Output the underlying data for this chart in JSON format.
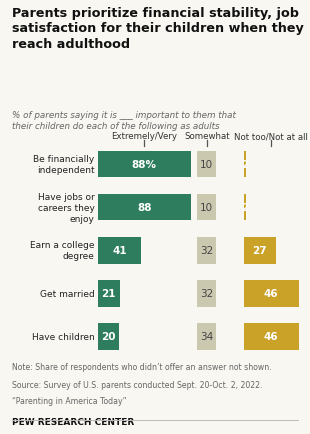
{
  "title": "Parents prioritize financial stability, job\nsatisfaction for their children when they\nreach adulthood",
  "subtitle": "% of parents saying it is ___ important to them that\ntheir children do each of the following as adults",
  "categories": [
    "Be financially\nindependent",
    "Have jobs or\ncareers they\nenjoy",
    "Earn a college\ndegree",
    "Get married",
    "Have children"
  ],
  "extremely_very": [
    88,
    88,
    41,
    21,
    20
  ],
  "somewhat": [
    10,
    10,
    32,
    32,
    34
  ],
  "not_too": [
    2,
    2,
    27,
    46,
    46
  ],
  "ev_label": [
    "88%",
    "88",
    "41",
    "21",
    "20"
  ],
  "color_green": "#2e7d5e",
  "color_tan": "#cbc8b0",
  "color_gold": "#c9a227",
  "header_ev": "Extremely/Very",
  "header_sw": "Somewhat",
  "header_nt": "Not too/Not at all",
  "note_line1": "Note: Share of respondents who didn’t offer an answer not shown.",
  "note_line2": "Source: Survey of U.S. parents conducted Sept. 20-Oct. 2, 2022.",
  "note_line3": "“Parenting in America Today”",
  "source_bold": "PEW RESEARCH CENTER",
  "bg_color": "#f8f7f2"
}
